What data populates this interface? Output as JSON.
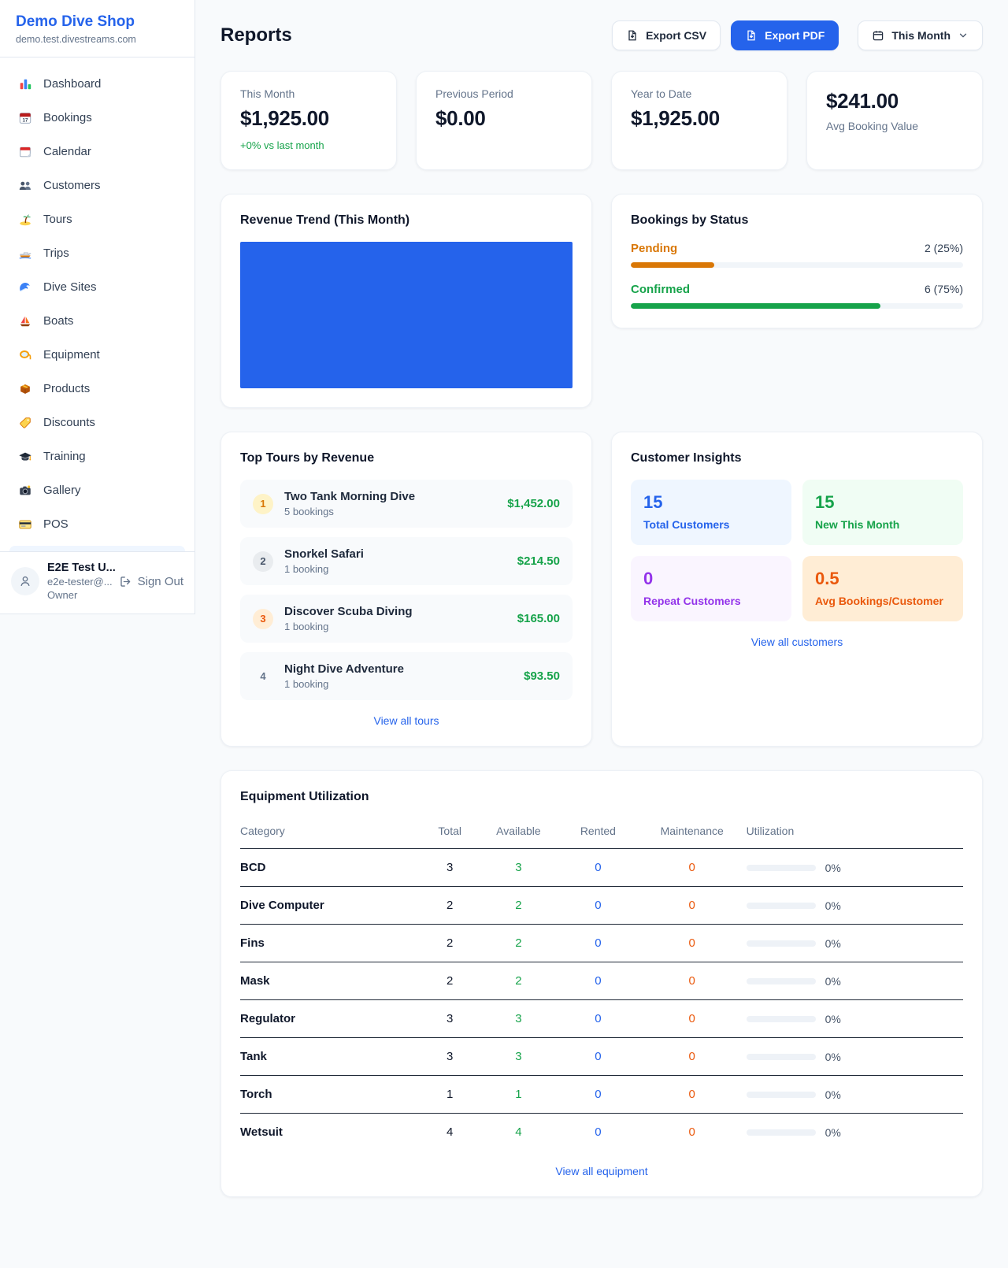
{
  "colors": {
    "primary_blue": "#2563eb",
    "success_green": "#16a34a",
    "pending_orange": "#d97706",
    "maintenance_orange": "#ea580c",
    "repeat_purple": "#9333ea",
    "page_background": "#f8fafc"
  },
  "sidebar": {
    "shop_name": "Demo Dive Shop",
    "shop_domain": "demo.test.divestreams.com",
    "items": [
      {
        "icon": "bar-chart",
        "label": "Dashboard"
      },
      {
        "icon": "calendar-date",
        "label": "Bookings"
      },
      {
        "icon": "tear-off-calendar",
        "label": "Calendar"
      },
      {
        "icon": "two-people",
        "label": "Customers"
      },
      {
        "icon": "desert-island",
        "label": "Tours"
      },
      {
        "icon": "speedboat",
        "label": "Trips"
      },
      {
        "icon": "ocean-wave",
        "label": "Dive Sites"
      },
      {
        "icon": "sailboat",
        "label": "Boats"
      },
      {
        "icon": "diving-mask",
        "label": "Equipment"
      },
      {
        "icon": "package-box",
        "label": "Products"
      },
      {
        "icon": "price-tag",
        "label": "Discounts"
      },
      {
        "icon": "graduation-cap",
        "label": "Training"
      },
      {
        "icon": "camera",
        "label": "Gallery"
      },
      {
        "icon": "credit-card",
        "label": "POS"
      }
    ],
    "user": {
      "name": "E2E Test U...",
      "email": "e2e-tester@...",
      "role": "Owner",
      "sign_out_label": "Sign Out"
    }
  },
  "header": {
    "title": "Reports",
    "export_csv_label": "Export CSV",
    "export_pdf_label": "Export PDF",
    "period_label": "This Month"
  },
  "stats": [
    {
      "label": "This Month",
      "value": "$1,925.00",
      "delta": "+0% vs last month"
    },
    {
      "label": "Previous Period",
      "value": "$0.00"
    },
    {
      "label": "Year to Date",
      "value": "$1,925.00"
    },
    {
      "label": "Avg Booking Value",
      "value": "$241.00"
    }
  ],
  "revenue_trend": {
    "title": "Revenue Trend (This Month)",
    "bar_color": "#2563eb",
    "fill_pct": 100
  },
  "bookings_by_status": {
    "title": "Bookings by Status",
    "rows": [
      {
        "label": "Pending",
        "value": "2 (25%)",
        "pct": 25
      },
      {
        "label": "Confirmed",
        "value": "6 (75%)",
        "pct": 75
      }
    ]
  },
  "top_tours": {
    "title": "Top Tours by Revenue",
    "rows": [
      {
        "rank": "1",
        "name": "Two Tank Morning Dive",
        "bookings": "5 bookings",
        "amount": "$1,452.00"
      },
      {
        "rank": "2",
        "name": "Snorkel Safari",
        "bookings": "1 booking",
        "amount": "$214.50"
      },
      {
        "rank": "3",
        "name": "Discover Scuba Diving",
        "bookings": "1 booking",
        "amount": "$165.00"
      },
      {
        "rank": "4",
        "name": "Night Dive Adventure",
        "bookings": "1 booking",
        "amount": "$93.50"
      }
    ],
    "view_all_label": "View all tours"
  },
  "customer_insights": {
    "title": "Customer Insights",
    "tiles": [
      {
        "value": "15",
        "label": "Total Customers"
      },
      {
        "value": "15",
        "label": "New This Month"
      },
      {
        "value": "0",
        "label": "Repeat Customers"
      },
      {
        "value": "0.5",
        "label": "Avg Bookings/Customer"
      }
    ],
    "view_all_label": "View all customers"
  },
  "equipment_utilization": {
    "title": "Equipment Utilization",
    "columns": [
      "Category",
      "Total",
      "Available",
      "Rented",
      "Maintenance",
      "Utilization"
    ],
    "rows": [
      {
        "category": "BCD",
        "total": "3",
        "available": "3",
        "rented": "0",
        "maintenance": "0",
        "utilization": "0%",
        "utilization_pct": 0
      },
      {
        "category": "Dive Computer",
        "total": "2",
        "available": "2",
        "rented": "0",
        "maintenance": "0",
        "utilization": "0%",
        "utilization_pct": 0
      },
      {
        "category": "Fins",
        "total": "2",
        "available": "2",
        "rented": "0",
        "maintenance": "0",
        "utilization": "0%",
        "utilization_pct": 0
      },
      {
        "category": "Mask",
        "total": "2",
        "available": "2",
        "rented": "0",
        "maintenance": "0",
        "utilization": "0%",
        "utilization_pct": 0
      },
      {
        "category": "Regulator",
        "total": "3",
        "available": "3",
        "rented": "0",
        "maintenance": "0",
        "utilization": "0%",
        "utilization_pct": 0
      },
      {
        "category": "Tank",
        "total": "3",
        "available": "3",
        "rented": "0",
        "maintenance": "0",
        "utilization": "0%",
        "utilization_pct": 0
      },
      {
        "category": "Torch",
        "total": "1",
        "available": "1",
        "rented": "0",
        "maintenance": "0",
        "utilization": "0%",
        "utilization_pct": 0
      },
      {
        "category": "Wetsuit",
        "total": "4",
        "available": "4",
        "rented": "0",
        "maintenance": "0",
        "utilization": "0%",
        "utilization_pct": 0
      }
    ],
    "view_all_label": "View all equipment"
  }
}
